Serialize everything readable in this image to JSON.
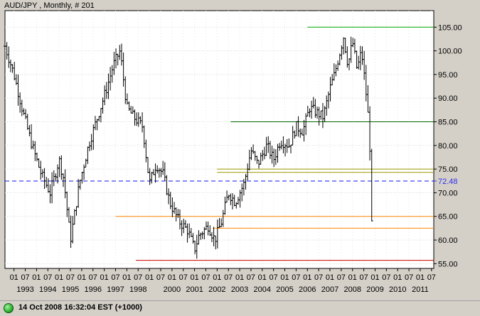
{
  "chart_data": {
    "type": "line",
    "style": "monthly OHLC bars",
    "title": "AUD/JPY , Monthly, # 201",
    "ylim": [
      54,
      108.5
    ],
    "y_ticks": [
      55,
      60,
      65,
      70,
      75,
      80,
      85,
      90,
      95,
      100,
      105
    ],
    "y_tick_labels": [
      "55.00",
      "60.00",
      "65.00",
      "70.00",
      "75.00",
      "80.00",
      "85.00",
      "90.00",
      "95.00",
      "100.00",
      "105.00"
    ],
    "x_month_labels": [
      "01",
      "07",
      "01",
      "07",
      "01",
      "07",
      "01",
      "07",
      "01",
      "07",
      "01",
      "07",
      "01",
      "07",
      "01",
      "07",
      "01",
      "07",
      "01",
      "07",
      "01",
      "07",
      "01",
      "07",
      "01",
      "07",
      "01",
      "07",
      "01",
      "07",
      "01",
      "07",
      "01",
      "07",
      "01",
      "07",
      "01",
      "07"
    ],
    "x_year_labels": [
      "1993",
      "1994",
      "1995",
      "1996",
      "1997",
      "1998",
      "2000",
      "2001",
      "2002",
      "2003",
      "2004",
      "2005",
      "2006",
      "2007",
      "2008",
      "2009",
      "2010",
      "2011"
    ],
    "x_year_positions": [
      1993.5,
      1994.5,
      1995.5,
      1996.5,
      1997.5,
      1998.5,
      2000.0,
      2001.0,
      2002.0,
      2003.0,
      2004.0,
      2005.0,
      2006.0,
      2007.0,
      2008.0,
      2009.0,
      2010.0,
      2011.0
    ],
    "grid": true,
    "current_price_label": "72.48",
    "current_price_line": 72.48,
    "horizontal_lines": [
      {
        "y": 105,
        "x_start": 2006.0,
        "x_end": 2011.4,
        "color": "#00aa00"
      },
      {
        "y": 85,
        "x_start": 2002.6,
        "x_end": 2011.4,
        "color": "#006600"
      },
      {
        "y": 75,
        "x_start": 2002.0,
        "x_end": 2011.4,
        "color": "#999900"
      },
      {
        "y": 74.3,
        "x_start": 2002.0,
        "x_end": 2011.4,
        "color": "#999900"
      },
      {
        "y": 65,
        "x_start": 1997.5,
        "x_end": 2011.4,
        "color": "#ff8800"
      },
      {
        "y": 62.5,
        "x_start": 2001.8,
        "x_end": 2011.4,
        "color": "#ff8800"
      },
      {
        "y": 55.7,
        "x_start": 1998.4,
        "x_end": 2011.4,
        "color": "#cc0000"
      }
    ],
    "x_range": [
      1992.6,
      2011.6
    ],
    "series": [
      {
        "x": [
          1992.6,
          1993.0,
          1993.4,
          1993.8,
          1994.2,
          1994.6,
          1995.0,
          1995.2,
          1995.5,
          1995.9,
          1996.3,
          1996.7,
          1997.1,
          1997.4,
          1997.7,
          1998.0,
          1998.3,
          1998.7,
          1999.0,
          1999.3,
          1999.6,
          1999.9,
          2000.3,
          2000.7,
          2001.0,
          2001.2,
          2001.6,
          2001.9,
          2002.2,
          2002.5,
          2002.8,
          2003.2,
          2003.5,
          2003.8,
          2004.2,
          2004.5,
          2004.8,
          2005.2,
          2005.5,
          2005.8,
          2006.1,
          2006.4,
          2006.7,
          2007.0,
          2007.2,
          2007.4,
          2007.6,
          2007.8,
          2008.0,
          2008.2,
          2008.4,
          2008.6,
          2008.75,
          2008.85
        ],
        "values": [
          101,
          95,
          87,
          80,
          74,
          70,
          77,
          73,
          60,
          72,
          80,
          86,
          92,
          97,
          100,
          88,
          86,
          84,
          72,
          76,
          74,
          68,
          64,
          62,
          58,
          61,
          63,
          60,
          64,
          70,
          68,
          72,
          79,
          76,
          80,
          77,
          81,
          80,
          84,
          83,
          88,
          87,
          86,
          92,
          95,
          99,
          103,
          97,
          102,
          96,
          100,
          91,
          83,
          63
        ]
      }
    ]
  },
  "status": {
    "text": "14 Oct 2008 16:32:04  EST (+1000)"
  }
}
